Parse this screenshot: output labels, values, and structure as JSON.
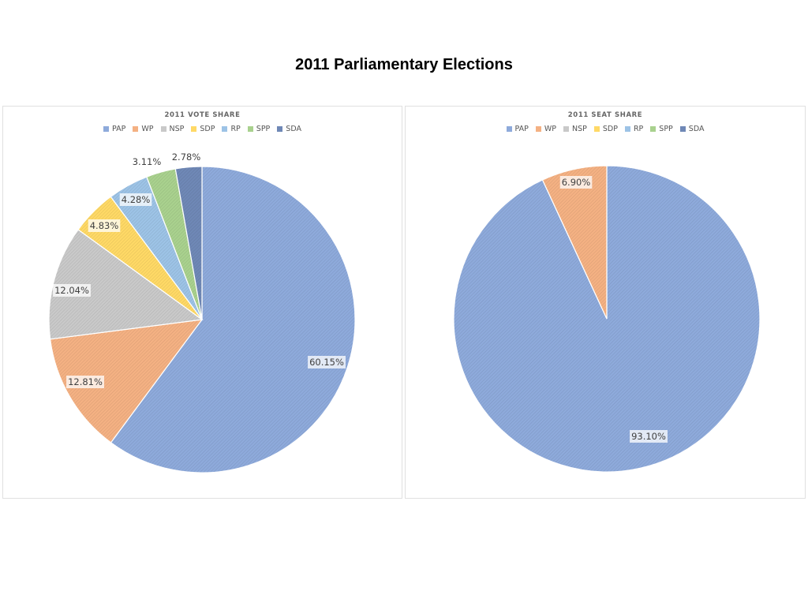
{
  "page": {
    "title": "2011 Parliamentary Elections"
  },
  "colors": {
    "PAP": "#8eaadb",
    "WP": "#f4b183",
    "NSP": "#c9c9c9",
    "SDP": "#ffd966",
    "RP": "#9dc3e6",
    "SPP": "#a9d18e",
    "SDA": "#6f88b6"
  },
  "chart_data": [
    {
      "type": "pie",
      "title": "2011 VOTE SHARE",
      "legend_position": "top",
      "categories": [
        "PAP",
        "WP",
        "NSP",
        "SDP",
        "RP",
        "SPP",
        "SDA"
      ],
      "values": [
        60.15,
        12.81,
        12.04,
        4.83,
        4.28,
        3.11,
        2.78
      ],
      "labels": [
        "60.15%",
        "12.81%",
        "12.04%",
        "4.83%",
        "4.28%",
        "3.11%",
        "2.78%"
      ]
    },
    {
      "type": "pie",
      "title": "2011 SEAT SHARE",
      "legend_position": "top",
      "categories": [
        "PAP",
        "WP",
        "NSP",
        "SDP",
        "RP",
        "SPP",
        "SDA"
      ],
      "values": [
        93.1,
        6.9,
        0,
        0,
        0,
        0,
        0
      ],
      "labels": [
        "93.10%",
        "6.90%",
        "",
        "",
        "",
        "",
        ""
      ]
    }
  ]
}
